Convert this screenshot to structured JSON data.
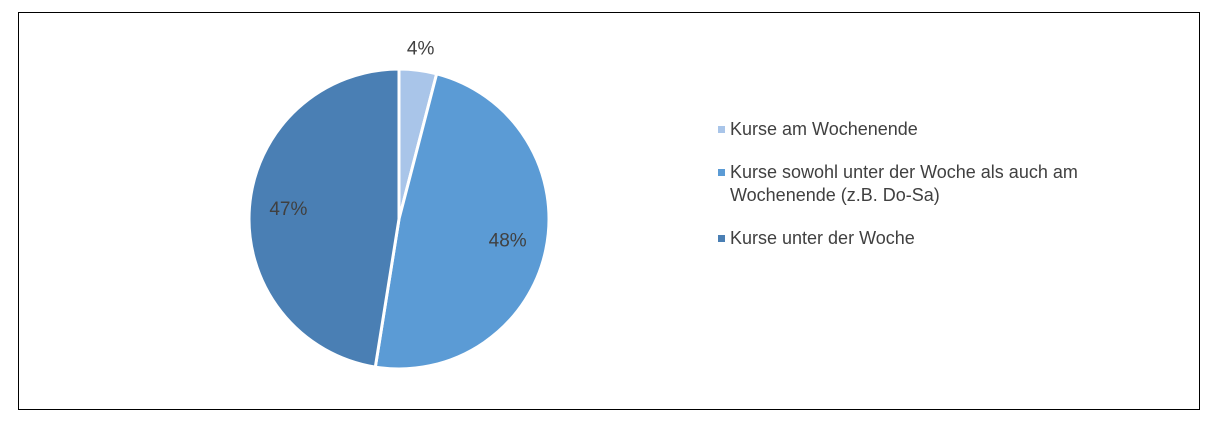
{
  "chart_data": {
    "type": "pie",
    "categories": [
      "Kurse am Wochenende",
      "Kurse sowohl unter der Woche als auch am Wochenende (z.B. Do-Sa)",
      "Kurse unter der Woche"
    ],
    "values": [
      4,
      48,
      47
    ],
    "value_labels": [
      "4%",
      "48%",
      "47%"
    ],
    "colors": [
      "#a9c5e9",
      "#5b9bd5",
      "#4a7fb4"
    ],
    "legend": "right"
  }
}
